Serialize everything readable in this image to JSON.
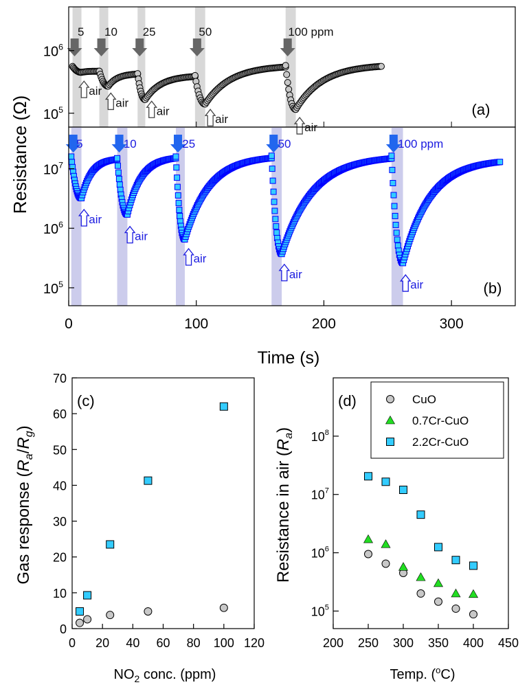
{
  "colors": {
    "black_series": "#000000",
    "gray_fill": "#c8c8c8",
    "gray_arrow": "#666666",
    "gray_band": "#d8d8d8",
    "blue_series": "#0000ff",
    "blue_arrow": "#2266ee",
    "blue_band": "#ccccec",
    "blue_label": "#1a1ae0",
    "cyan_fill": "#33ccff",
    "green_fill": "#22dd22"
  },
  "shared": {
    "ylabel": "Resistance (Ω)",
    "xlabel": "Time (s)",
    "xlim": [
      0,
      350
    ],
    "xticks": [
      0,
      100,
      200,
      300
    ],
    "air_label": "air"
  },
  "chart_data": [
    {
      "id": "a",
      "type": "line",
      "panel_label": "(a)",
      "yscale": "log",
      "ylim": [
        60000,
        5000000
      ],
      "yticks": [
        {
          "value": 100000,
          "base": "10",
          "exp": "5"
        },
        {
          "value": 1000000,
          "base": "10",
          "exp": "6"
        }
      ],
      "baseline": 560000,
      "pulses": [
        {
          "label": "5",
          "on": 3,
          "off": 10,
          "min": 450000,
          "end": 470000,
          "air_t": 12,
          "air_r": 240000,
          "label_t": 7
        },
        {
          "label": "10",
          "on": 24,
          "off": 31,
          "min": 270000,
          "end": 430000,
          "air_t": 33,
          "air_r": 155000,
          "label_t": 28
        },
        {
          "label": "25",
          "on": 54,
          "off": 60,
          "min": 165000,
          "end": 400000,
          "air_t": 65,
          "air_r": 115000,
          "label_t": 58
        },
        {
          "label": "50",
          "on": 99,
          "off": 107,
          "min": 140000,
          "end": 580000,
          "air_t": 111,
          "air_r": 85000,
          "label_t": 102
        },
        {
          "label": "100 ppm",
          "on": 170,
          "off": 178,
          "min": 115000,
          "end": 600000,
          "air_t": 181,
          "air_r": 63000,
          "label_t": 172
        }
      ],
      "end_time": 245
    },
    {
      "id": "b",
      "type": "line",
      "panel_label": "(b)",
      "yscale": "log",
      "ylim": [
        50000,
        50000000
      ],
      "yticks": [
        {
          "value": 100000,
          "base": "10",
          "exp": "5"
        },
        {
          "value": 1000000,
          "base": "10",
          "exp": "6"
        },
        {
          "value": 10000000,
          "base": "10",
          "exp": "7"
        }
      ],
      "baseline": 16000000,
      "pulses": [
        {
          "label": "5",
          "on": 2,
          "off": 10,
          "min": 3200000,
          "end": 15000000,
          "air_t": 12,
          "air_r": 1500000,
          "label_t": 6
        },
        {
          "label": "10",
          "on": 38,
          "off": 46,
          "min": 1700000,
          "end": 16000000,
          "air_t": 48,
          "air_r": 780000,
          "label_t": 43
        },
        {
          "label": "25",
          "on": 84,
          "off": 91,
          "min": 650000,
          "end": 16500000,
          "air_t": 94,
          "air_r": 330000,
          "label_t": 89
        },
        {
          "label": "50",
          "on": 159,
          "off": 167,
          "min": 370000,
          "end": 16500000,
          "air_t": 169,
          "air_r": 180000,
          "label_t": 164
        },
        {
          "label": "100 ppm",
          "on": 253,
          "off": 262,
          "min": 260000,
          "end": 14500000,
          "air_t": 264,
          "air_r": 120000,
          "label_t": 258
        }
      ],
      "end_time": 338
    },
    {
      "id": "c",
      "type": "scatter",
      "panel_label": "(c)",
      "xlabel_pre": "NO",
      "xlabel_sub": "2",
      "xlabel_post": " conc. (ppm)",
      "ylabel_pre": "Gas response (",
      "ylabel_ra": "R",
      "ylabel_ra_sub": "a",
      "ylabel_slash": "/",
      "ylabel_rg": "R",
      "ylabel_rg_sub": "g",
      "ylabel_post": ")",
      "xlim": [
        0,
        120
      ],
      "ylim": [
        0,
        70
      ],
      "xticks": [
        0,
        20,
        40,
        60,
        80,
        100,
        120
      ],
      "yticks": [
        0,
        10,
        20,
        30,
        40,
        50,
        60,
        70
      ],
      "series": [
        {
          "name": "CuO",
          "marker": "circle",
          "x": [
            5,
            10,
            25,
            50,
            100
          ],
          "y": [
            1.6,
            2.6,
            3.8,
            4.8,
            5.8
          ]
        },
        {
          "name": "2.2Cr-CuO",
          "marker": "square",
          "x": [
            5,
            10,
            25,
            50,
            100
          ],
          "y": [
            4.8,
            9.3,
            23.5,
            41.3,
            62.0
          ]
        }
      ]
    },
    {
      "id": "d",
      "type": "scatter",
      "panel_label": "(d)",
      "xlabel_pre": "Temp. (",
      "xlabel_sup": "o",
      "xlabel_post": "C)",
      "ylabel_pre": "Resistance in air (",
      "ylabel_r": "R",
      "ylabel_sub": "a",
      "ylabel_post": ")",
      "yscale": "log",
      "xlim": [
        200,
        450
      ],
      "ylim": [
        50000,
        1000000000
      ],
      "xticks": [
        200,
        250,
        300,
        350,
        400,
        450
      ],
      "yticks": [
        {
          "value": 100000,
          "base": "10",
          "exp": "5"
        },
        {
          "value": 1000000,
          "base": "10",
          "exp": "6"
        },
        {
          "value": 10000000,
          "base": "10",
          "exp": "7"
        },
        {
          "value": 100000000,
          "base": "10",
          "exp": "8"
        }
      ],
      "legend_position": "top-right",
      "series": [
        {
          "name": "CuO",
          "marker": "circle",
          "x": [
            250,
            275,
            300,
            325,
            350,
            375,
            400
          ],
          "y": [
            950000,
            650000,
            450000,
            200000,
            145000,
            110000,
            88000
          ]
        },
        {
          "name": "0.7Cr-CuO",
          "marker": "triangle",
          "x": [
            250,
            275,
            300,
            325,
            350,
            375,
            400
          ],
          "y": [
            1700000,
            1400000,
            570000,
            380000,
            300000,
            200000,
            195000
          ]
        },
        {
          "name": "2.2Cr-CuO",
          "marker": "square",
          "x": [
            250,
            275,
            300,
            325,
            350,
            375,
            400
          ],
          "y": [
            20500000,
            16500000,
            12000000,
            4500000,
            1250000,
            750000,
            600000
          ]
        }
      ]
    }
  ]
}
